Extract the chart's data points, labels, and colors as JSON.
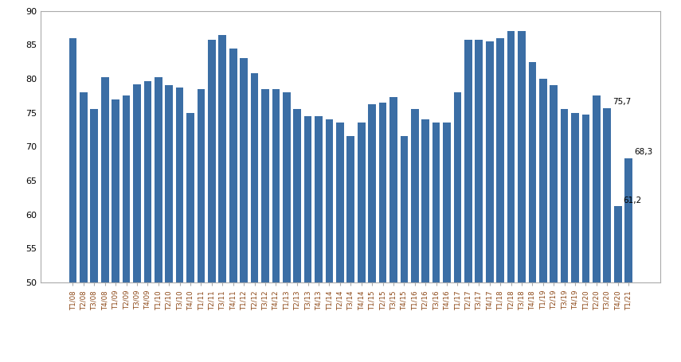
{
  "categories": [
    "T1/08",
    "T2/08",
    "T3/08",
    "T4/08",
    "T1/09",
    "T2/09",
    "T3/09",
    "T4/09",
    "T1/10",
    "T2/10",
    "T3/10",
    "T4/10",
    "T1/11",
    "T2/11",
    "T3/11",
    "T4/11",
    "T1/12",
    "T2/12",
    "T3/12",
    "T4/12",
    "T1/13",
    "T2/13",
    "T3/13",
    "T4/13",
    "T1/14",
    "T2/14",
    "T3/14",
    "T4/14",
    "T1/15",
    "T2/15",
    "T3/15",
    "T4/15",
    "T1/16",
    "T2/16",
    "T3/16",
    "T4/16",
    "T1/17",
    "T2/17",
    "T3/17",
    "T4/17",
    "T1/18",
    "T2/18",
    "T3/18",
    "T4/18",
    "T1/19",
    "T2/19",
    "T3/19",
    "T4/19",
    "T1/20",
    "T2/20",
    "T3/20",
    "T4/20",
    "T1/21"
  ],
  "values": [
    86.0,
    78.0,
    75.5,
    80.2,
    77.0,
    77.5,
    79.2,
    79.7,
    80.2,
    79.0,
    78.7,
    75.0,
    78.5,
    85.7,
    86.5,
    84.5,
    83.0,
    80.8,
    78.5,
    78.5,
    78.0,
    75.5,
    74.5,
    74.5,
    74.0,
    73.5,
    71.5,
    73.5,
    76.2,
    76.5,
    77.3,
    71.5,
    75.5,
    74.0,
    73.5,
    73.5,
    78.0,
    85.7,
    85.7,
    85.5,
    86.0,
    87.0,
    87.0,
    82.5,
    80.0,
    79.0,
    75.5,
    75.0,
    74.7,
    77.5,
    75.7,
    61.2,
    68.3
  ],
  "bar_color": "#3B6EA5",
  "ymin": 50,
  "ymax": 90,
  "yticks": [
    50,
    55,
    60,
    65,
    70,
    75,
    80,
    85,
    90
  ],
  "background_color": "#ffffff",
  "x_tick_color": "#8B4513",
  "x_tick_fontsize": 6.2,
  "y_tick_fontsize": 8,
  "bar_bottom": 50,
  "annotate_indices": [
    50,
    51,
    52
  ],
  "annotate_texts": [
    "75,7",
    "61,2",
    "68,3"
  ],
  "annotate_values": [
    75.7,
    61.2,
    68.3
  ],
  "spine_color": "#aaaaaa",
  "border_color": "#aaaaaa"
}
